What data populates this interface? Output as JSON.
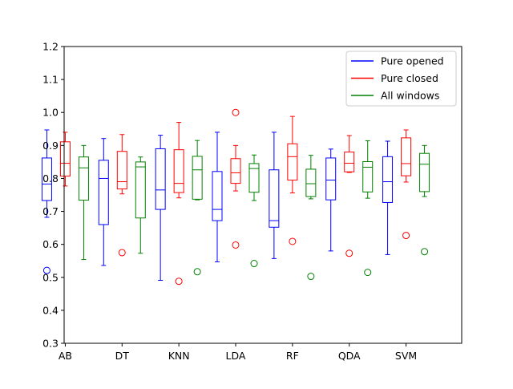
{
  "chart_data": {
    "type": "box",
    "title": "",
    "xlabel": "",
    "ylabel": "",
    "ylim": [
      0.3,
      1.2
    ],
    "yticks": [
      "0.3",
      "0.4",
      "0.5",
      "0.6",
      "0.7",
      "0.8",
      "0.9",
      "1.0",
      "1.1",
      "1.2"
    ],
    "categories": [
      "AB",
      "DT",
      "KNN",
      "LDA",
      "RF",
      "QDA",
      "SVM"
    ],
    "grid": false,
    "legend_position": "top-right",
    "series": [
      {
        "name": "Pure opened",
        "color": "#0000ff",
        "boxes": [
          {
            "whislo": 0.682,
            "q1": 0.733,
            "med": 0.783,
            "q3": 0.862,
            "whishi": 0.947,
            "fliers": [
              0.521
            ]
          },
          {
            "whislo": 0.536,
            "q1": 0.66,
            "med": 0.8,
            "q3": 0.855,
            "whishi": 0.921,
            "fliers": []
          },
          {
            "whislo": 0.491,
            "q1": 0.706,
            "med": 0.765,
            "q3": 0.89,
            "whishi": 0.931,
            "fliers": []
          },
          {
            "whislo": 0.547,
            "q1": 0.672,
            "med": 0.706,
            "q3": 0.821,
            "whishi": 0.94,
            "fliers": []
          },
          {
            "whislo": 0.557,
            "q1": 0.652,
            "med": 0.672,
            "q3": 0.826,
            "whishi": 0.94,
            "fliers": []
          },
          {
            "whislo": 0.58,
            "q1": 0.735,
            "med": 0.795,
            "q3": 0.862,
            "whishi": 0.889,
            "fliers": []
          },
          {
            "whislo": 0.569,
            "q1": 0.727,
            "med": 0.79,
            "q3": 0.866,
            "whishi": 0.913,
            "fliers": []
          }
        ]
      },
      {
        "name": "Pure closed",
        "color": "#ff0000",
        "boxes": [
          {
            "whislo": 0.777,
            "q1": 0.807,
            "med": 0.846,
            "q3": 0.911,
            "whishi": 0.94,
            "fliers": []
          },
          {
            "whislo": 0.753,
            "q1": 0.768,
            "med": 0.79,
            "q3": 0.882,
            "whishi": 0.933,
            "fliers": [
              0.575
            ]
          },
          {
            "whislo": 0.741,
            "q1": 0.757,
            "med": 0.785,
            "q3": 0.887,
            "whishi": 0.97,
            "fliers": [
              0.488
            ]
          },
          {
            "whislo": 0.762,
            "q1": 0.785,
            "med": 0.817,
            "q3": 0.86,
            "whishi": 0.9,
            "fliers": [
              0.598,
              1.0
            ]
          },
          {
            "whislo": 0.756,
            "q1": 0.795,
            "med": 0.866,
            "q3": 0.905,
            "whishi": 0.988,
            "fliers": [
              0.609
            ]
          },
          {
            "whislo": 0.818,
            "q1": 0.82,
            "med": 0.846,
            "q3": 0.88,
            "whishi": 0.93,
            "fliers": [
              0.573
            ]
          },
          {
            "whislo": 0.789,
            "q1": 0.808,
            "med": 0.845,
            "q3": 0.923,
            "whishi": 0.947,
            "fliers": [
              0.627
            ]
          }
        ]
      },
      {
        "name": "All windows",
        "color": "#008000",
        "boxes": [
          {
            "whislo": 0.554,
            "q1": 0.734,
            "med": 0.832,
            "q3": 0.865,
            "whishi": 0.9,
            "fliers": []
          },
          {
            "whislo": 0.573,
            "q1": 0.68,
            "med": 0.835,
            "q3": 0.85,
            "whishi": 0.865,
            "fliers": []
          },
          {
            "whislo": 0.735,
            "q1": 0.737,
            "med": 0.826,
            "q3": 0.867,
            "whishi": 0.915,
            "fliers": [
              0.517
            ]
          },
          {
            "whislo": 0.733,
            "q1": 0.758,
            "med": 0.83,
            "q3": 0.845,
            "whishi": 0.871,
            "fliers": [
              0.542
            ]
          },
          {
            "whislo": 0.738,
            "q1": 0.745,
            "med": 0.784,
            "q3": 0.828,
            "whishi": 0.87,
            "fliers": [
              0.503
            ]
          },
          {
            "whislo": 0.74,
            "q1": 0.759,
            "med": 0.834,
            "q3": 0.851,
            "whishi": 0.914,
            "fliers": [
              0.515
            ]
          },
          {
            "whislo": 0.745,
            "q1": 0.76,
            "med": 0.843,
            "q3": 0.876,
            "whishi": 0.9,
            "fliers": [
              0.578
            ]
          }
        ]
      }
    ]
  }
}
